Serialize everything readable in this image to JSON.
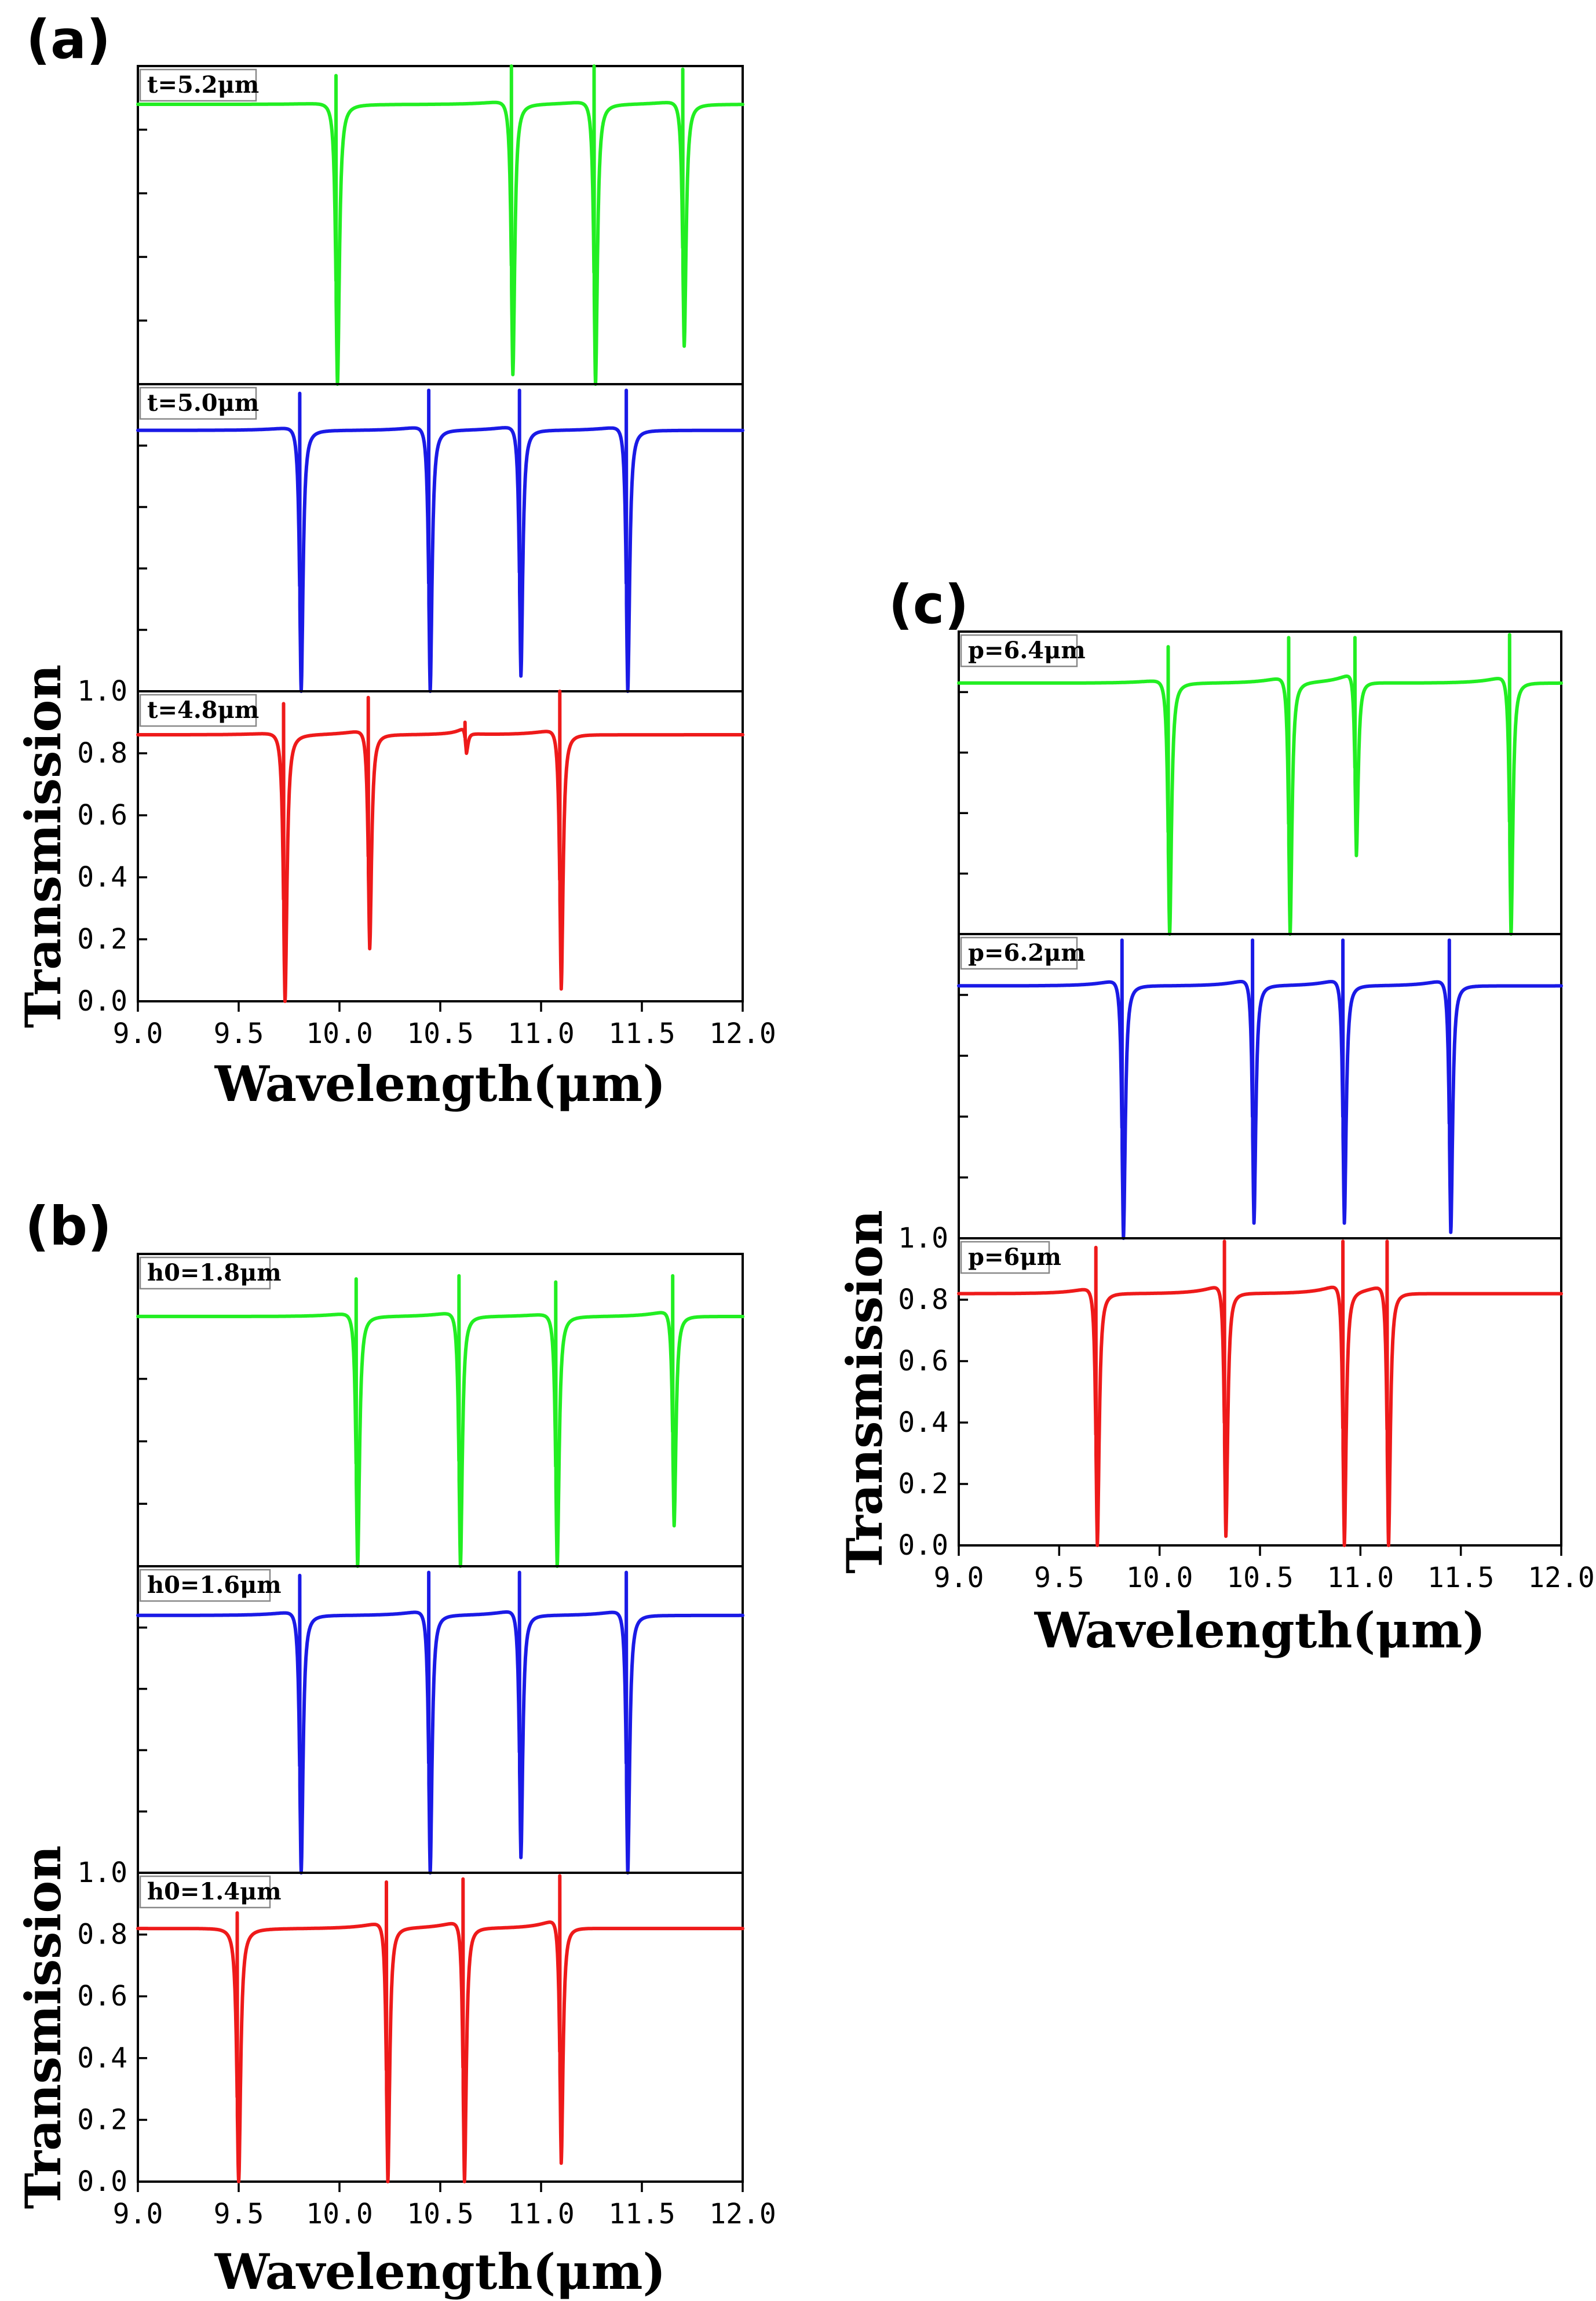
{
  "figure": {
    "panel_labels": [
      "(a)",
      "(b)",
      "(c)"
    ]
  },
  "chart_data": [
    {
      "panel": "(a)",
      "type": "line",
      "xlabel": "Wavelength(μm)",
      "ylabel": "Transmission",
      "xlim": [
        9.0,
        12.0
      ],
      "ylim": [
        0.0,
        1.0
      ],
      "xticks": [
        "9.0",
        "9.5",
        "10.0",
        "10.5",
        "11.0",
        "11.5",
        "12.0"
      ],
      "yticks": [
        "0.0",
        "0.2",
        "0.4",
        "0.6",
        "0.8",
        "1.0"
      ],
      "subplots": [
        {
          "label": "t=5.2μm",
          "color": "#22ee22",
          "baseline": 0.88,
          "resonances": [
            {
              "x": 9.99,
              "min": 0.0,
              "peak": 0.97
            },
            {
              "x": 10.86,
              "min": 0.03,
              "peak": 1.0
            },
            {
              "x": 11.27,
              "min": 0.0,
              "peak": 1.0
            },
            {
              "x": 11.71,
              "min": 0.12,
              "peak": 0.99
            }
          ]
        },
        {
          "label": "t=5.0μm",
          "color": "#1a1ae6",
          "baseline": 0.85,
          "resonances": [
            {
              "x": 9.81,
              "min": 0.0,
              "peak": 0.97
            },
            {
              "x": 10.45,
              "min": 0.0,
              "peak": 0.98
            },
            {
              "x": 10.9,
              "min": 0.05,
              "peak": 0.98
            },
            {
              "x": 11.43,
              "min": 0.0,
              "peak": 0.98
            }
          ]
        },
        {
          "label": "t=4.8μm",
          "color": "#ee1a1a",
          "baseline": 0.86,
          "resonances": [
            {
              "x": 9.73,
              "min": 0.0,
              "peak": 0.96
            },
            {
              "x": 10.15,
              "min": 0.17,
              "peak": 0.98
            },
            {
              "x": 10.63,
              "min": 0.8,
              "peak": 0.9
            },
            {
              "x": 11.1,
              "min": 0.04,
              "peak": 1.0
            }
          ]
        }
      ]
    },
    {
      "panel": "(b)",
      "type": "line",
      "xlabel": "Wavelength(μm)",
      "ylabel": "Transmission",
      "xlim": [
        9.0,
        12.0
      ],
      "ylim": [
        0.0,
        1.0
      ],
      "xticks": [
        "9.0",
        "9.5",
        "10.0",
        "10.5",
        "11.0",
        "11.5",
        "12.0"
      ],
      "yticks": [
        "0.0",
        "0.2",
        "0.4",
        "0.6",
        "0.8",
        "1.0"
      ],
      "subplots": [
        {
          "label": "h0=1.8μm",
          "color": "#22ee22",
          "baseline": 0.8,
          "resonances": [
            {
              "x": 10.09,
              "min": 0.0,
              "peak": 0.92
            },
            {
              "x": 10.6,
              "min": 0.0,
              "peak": 0.93
            },
            {
              "x": 11.08,
              "min": 0.0,
              "peak": 0.91
            },
            {
              "x": 11.66,
              "min": 0.13,
              "peak": 0.93
            }
          ]
        },
        {
          "label": "h0=1.6μm",
          "color": "#1a1ae6",
          "baseline": 0.84,
          "resonances": [
            {
              "x": 9.81,
              "min": 0.0,
              "peak": 0.97
            },
            {
              "x": 10.45,
              "min": 0.0,
              "peak": 0.98
            },
            {
              "x": 10.9,
              "min": 0.05,
              "peak": 0.98
            },
            {
              "x": 11.43,
              "min": 0.0,
              "peak": 0.98
            }
          ]
        },
        {
          "label": "h0=1.4μm",
          "color": "#ee1a1a",
          "baseline": 0.82,
          "resonances": [
            {
              "x": 9.5,
              "min": 0.0,
              "peak": 0.87
            },
            {
              "x": 10.24,
              "min": 0.0,
              "peak": 0.97
            },
            {
              "x": 10.62,
              "min": 0.0,
              "peak": 0.98
            },
            {
              "x": 11.1,
              "min": 0.06,
              "peak": 0.99
            }
          ]
        }
      ]
    },
    {
      "panel": "(c)",
      "type": "line",
      "xlabel": "Wavelength(μm)",
      "ylabel": "Transmission",
      "xlim": [
        9.0,
        12.0
      ],
      "ylim": [
        0.0,
        1.0
      ],
      "xticks": [
        "9.0",
        "9.5",
        "10.0",
        "10.5",
        "11.0",
        "11.5",
        "12.0"
      ],
      "yticks": [
        "0.0",
        "0.2",
        "0.4",
        "0.6",
        "0.8",
        "1.0"
      ],
      "subplots": [
        {
          "label": "p=6.4μm",
          "color": "#22ee22",
          "baseline": 0.83,
          "resonances": [
            {
              "x": 10.05,
              "min": 0.0,
              "peak": 0.95
            },
            {
              "x": 10.65,
              "min": 0.0,
              "peak": 0.98
            },
            {
              "x": 10.98,
              "min": 0.26,
              "peak": 0.98
            },
            {
              "x": 11.75,
              "min": 0.0,
              "peak": 0.99
            }
          ]
        },
        {
          "label": "p=6.2μm",
          "color": "#1a1ae6",
          "baseline": 0.83,
          "resonances": [
            {
              "x": 9.82,
              "min": 0.0,
              "peak": 0.98
            },
            {
              "x": 10.47,
              "min": 0.05,
              "peak": 0.98
            },
            {
              "x": 10.92,
              "min": 0.05,
              "peak": 0.98
            },
            {
              "x": 11.45,
              "min": 0.02,
              "peak": 0.98
            }
          ]
        },
        {
          "label": "p=6μm",
          "color": "#ee1a1a",
          "baseline": 0.82,
          "resonances": [
            {
              "x": 9.69,
              "min": 0.0,
              "peak": 0.97
            },
            {
              "x": 10.33,
              "min": 0.03,
              "peak": 0.99
            },
            {
              "x": 10.92,
              "min": 0.0,
              "peak": 0.99
            },
            {
              "x": 11.14,
              "min": 0.0,
              "peak": 0.99
            }
          ]
        }
      ]
    }
  ]
}
